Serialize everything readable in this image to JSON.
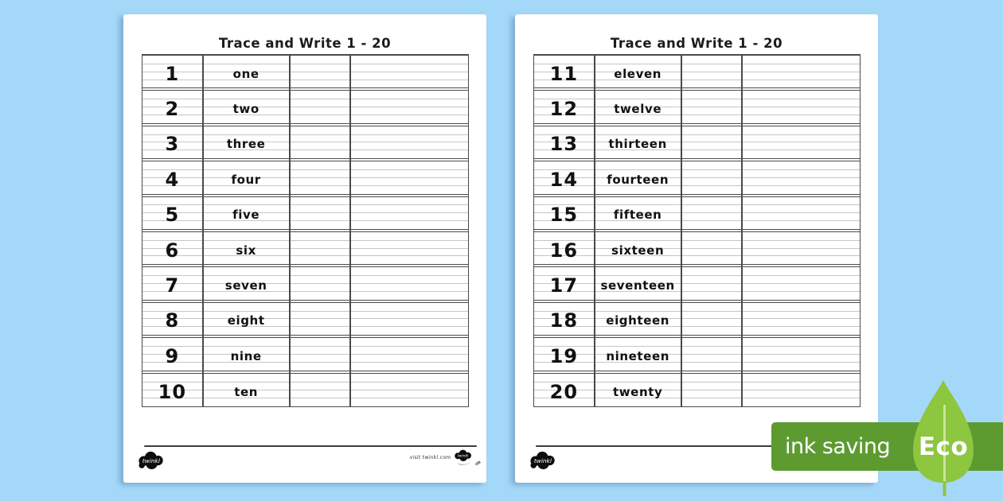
{
  "background_color": "#a4d8f8",
  "page_color": "#ffffff",
  "table_style": {
    "border_color": "#4a4a4a",
    "guide_line_color": "#c6c6c6"
  },
  "pages": [
    {
      "title": "Trace and Write 1 - 20",
      "rows": [
        {
          "number": "1",
          "word": "one"
        },
        {
          "number": "2",
          "word": "two"
        },
        {
          "number": "3",
          "word": "three"
        },
        {
          "number": "4",
          "word": "four"
        },
        {
          "number": "5",
          "word": "five"
        },
        {
          "number": "6",
          "word": "six"
        },
        {
          "number": "7",
          "word": "seven"
        },
        {
          "number": "8",
          "word": "eight"
        },
        {
          "number": "9",
          "word": "nine"
        },
        {
          "number": "10",
          "word": "ten"
        }
      ],
      "footer": {
        "brand": "twinkl",
        "visit_text": "visit twinkl.com"
      }
    },
    {
      "title": "Trace and Write 1 - 20",
      "rows": [
        {
          "number": "11",
          "word": "eleven"
        },
        {
          "number": "12",
          "word": "twelve"
        },
        {
          "number": "13",
          "word": "thirteen"
        },
        {
          "number": "14",
          "word": "fourteen"
        },
        {
          "number": "15",
          "word": "fifteen"
        },
        {
          "number": "16",
          "word": "sixteen"
        },
        {
          "number": "17",
          "word": "seventeen"
        },
        {
          "number": "18",
          "word": "eighteen"
        },
        {
          "number": "19",
          "word": "nineteen"
        },
        {
          "number": "20",
          "word": "twenty"
        }
      ],
      "footer": {
        "brand": "twinkl",
        "visit_text": "visit twinkl.com"
      }
    }
  ],
  "badge": {
    "label": "ink saving",
    "eco_label": "Eco",
    "bar_color": "#5d9b31",
    "leaf_color": "#8dc63f",
    "stem_color": "#cde59c",
    "text_color": "#ffffff"
  }
}
